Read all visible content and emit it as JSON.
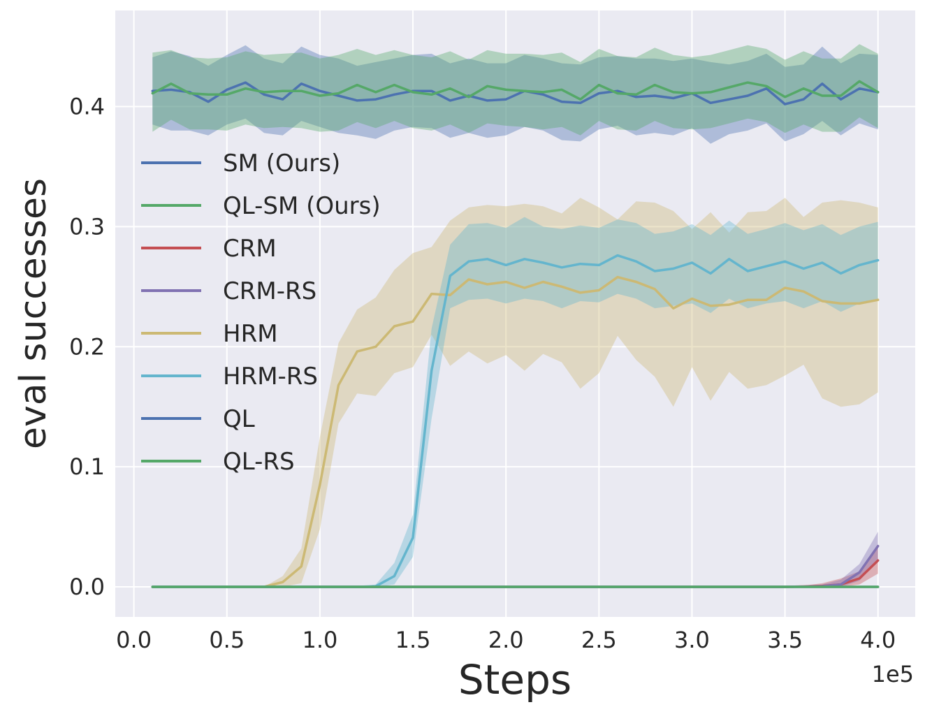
{
  "chart_data": {
    "type": "line",
    "xlabel": "Steps",
    "ylabel": "eval successes",
    "x_offset_label": "1e5",
    "xlim": [
      -0.1,
      4.2
    ],
    "ylim": [
      -0.025,
      0.48
    ],
    "xticks": [
      0.0,
      0.5,
      1.0,
      1.5,
      2.0,
      2.5,
      3.0,
      3.5,
      4.0
    ],
    "xtick_labels": [
      "0.0",
      "0.5",
      "1.0",
      "1.5",
      "2.0",
      "2.5",
      "3.0",
      "3.5",
      "4.0"
    ],
    "yticks": [
      0.0,
      0.1,
      0.2,
      0.3,
      0.4
    ],
    "ytick_labels": [
      "0.0",
      "0.1",
      "0.2",
      "0.3",
      "0.4"
    ],
    "grid": true,
    "legend_position": "upper-left",
    "background": "#EAEAF2",
    "x": [
      0.1,
      0.2,
      0.3,
      0.4,
      0.5,
      0.6,
      0.7,
      0.8,
      0.9,
      1.0,
      1.1,
      1.2,
      1.3,
      1.4,
      1.5,
      1.6,
      1.7,
      1.8,
      1.9,
      2.0,
      2.1,
      2.2,
      2.3,
      2.4,
      2.5,
      2.6,
      2.7,
      2.8,
      2.9,
      3.0,
      3.1,
      3.2,
      3.3,
      3.4,
      3.5,
      3.6,
      3.7,
      3.8,
      3.9,
      4.0
    ],
    "series": [
      {
        "name": "SM (Ours)",
        "color": "#4C72B0",
        "values": [
          0.413,
          0.414,
          0.412,
          0.404,
          0.414,
          0.42,
          0.41,
          0.406,
          0.419,
          0.413,
          0.409,
          0.405,
          0.406,
          0.41,
          0.413,
          0.413,
          0.405,
          0.409,
          0.405,
          0.406,
          0.413,
          0.41,
          0.404,
          0.403,
          0.411,
          0.413,
          0.408,
          0.409,
          0.407,
          0.411,
          0.403,
          0.406,
          0.409,
          0.415,
          0.402,
          0.406,
          0.419,
          0.406,
          0.415,
          0.412
        ],
        "lower": [
          0.385,
          0.38,
          0.38,
          0.376,
          0.385,
          0.39,
          0.378,
          0.376,
          0.388,
          0.383,
          0.378,
          0.376,
          0.373,
          0.38,
          0.383,
          0.382,
          0.374,
          0.378,
          0.374,
          0.376,
          0.383,
          0.38,
          0.372,
          0.371,
          0.381,
          0.384,
          0.376,
          0.378,
          0.376,
          0.382,
          0.369,
          0.377,
          0.38,
          0.386,
          0.371,
          0.377,
          0.388,
          0.376,
          0.386,
          0.381
        ],
        "upper": [
          0.441,
          0.446,
          0.442,
          0.434,
          0.443,
          0.451,
          0.44,
          0.436,
          0.45,
          0.443,
          0.44,
          0.434,
          0.437,
          0.44,
          0.443,
          0.444,
          0.436,
          0.44,
          0.436,
          0.436,
          0.443,
          0.44,
          0.436,
          0.435,
          0.441,
          0.442,
          0.44,
          0.44,
          0.438,
          0.44,
          0.437,
          0.435,
          0.438,
          0.444,
          0.433,
          0.435,
          0.45,
          0.436,
          0.444,
          0.443
        ]
      },
      {
        "name": "QL-SM (Ours)",
        "color": "#55A868",
        "values": [
          0.411,
          0.419,
          0.411,
          0.41,
          0.41,
          0.415,
          0.412,
          0.413,
          0.413,
          0.409,
          0.411,
          0.418,
          0.412,
          0.418,
          0.412,
          0.41,
          0.415,
          0.408,
          0.417,
          0.414,
          0.413,
          0.412,
          0.414,
          0.406,
          0.418,
          0.411,
          0.41,
          0.418,
          0.412,
          0.411,
          0.412,
          0.416,
          0.42,
          0.417,
          0.408,
          0.415,
          0.409,
          0.409,
          0.421,
          0.412
        ],
        "lower": [
          0.379,
          0.389,
          0.381,
          0.381,
          0.38,
          0.385,
          0.382,
          0.383,
          0.382,
          0.379,
          0.38,
          0.387,
          0.382,
          0.388,
          0.382,
          0.38,
          0.385,
          0.378,
          0.386,
          0.384,
          0.383,
          0.381,
          0.383,
          0.376,
          0.388,
          0.381,
          0.38,
          0.388,
          0.382,
          0.381,
          0.382,
          0.386,
          0.39,
          0.387,
          0.378,
          0.385,
          0.379,
          0.379,
          0.391,
          0.382
        ],
        "upper": [
          0.445,
          0.447,
          0.441,
          0.44,
          0.441,
          0.446,
          0.443,
          0.444,
          0.445,
          0.44,
          0.443,
          0.448,
          0.443,
          0.447,
          0.443,
          0.441,
          0.446,
          0.439,
          0.447,
          0.444,
          0.444,
          0.443,
          0.445,
          0.437,
          0.448,
          0.442,
          0.441,
          0.449,
          0.443,
          0.441,
          0.443,
          0.447,
          0.451,
          0.448,
          0.439,
          0.446,
          0.44,
          0.44,
          0.452,
          0.444
        ]
      },
      {
        "name": "CRM",
        "color": "#C44E52",
        "values": [
          0,
          0,
          0,
          0,
          0,
          0,
          0,
          0,
          0,
          0,
          0,
          0,
          0,
          0,
          0,
          0,
          0,
          0,
          0,
          0,
          0,
          0,
          0,
          0,
          0,
          0,
          0,
          0,
          0,
          0,
          0,
          0,
          0,
          0,
          0,
          0.0003,
          0.0008,
          0.002,
          0.007,
          0.022
        ],
        "lower": [
          0,
          0,
          0,
          0,
          0,
          0,
          0,
          0,
          0,
          0,
          0,
          0,
          0,
          0,
          0,
          0,
          0,
          0,
          0,
          0,
          0,
          0,
          0,
          0,
          0,
          0,
          0,
          0,
          0,
          0,
          0,
          0,
          0,
          0,
          0,
          0,
          0,
          0,
          0.002,
          0.011
        ],
        "upper": [
          0,
          0,
          0,
          0,
          0,
          0,
          0,
          0,
          0,
          0,
          0,
          0,
          0,
          0,
          0,
          0,
          0,
          0,
          0,
          0,
          0,
          0,
          0,
          0,
          0,
          0,
          0,
          0,
          0,
          0,
          0,
          0,
          0,
          0,
          0,
          0.001,
          0.003,
          0.007,
          0.013,
          0.033
        ]
      },
      {
        "name": "CRM-RS",
        "color": "#8172B2",
        "values": [
          0,
          0,
          0,
          0,
          0,
          0,
          0,
          0,
          0,
          0,
          0,
          0,
          0,
          0,
          0,
          0,
          0,
          0,
          0,
          0,
          0,
          0,
          0,
          0,
          0,
          0,
          0,
          0,
          0,
          0,
          0,
          0,
          0,
          0,
          0,
          0.0002,
          0.0005,
          0.002,
          0.012,
          0.034
        ],
        "lower": [
          0,
          0,
          0,
          0,
          0,
          0,
          0,
          0,
          0,
          0,
          0,
          0,
          0,
          0,
          0,
          0,
          0,
          0,
          0,
          0,
          0,
          0,
          0,
          0,
          0,
          0,
          0,
          0,
          0,
          0,
          0,
          0,
          0,
          0,
          0,
          0,
          0,
          0,
          0.005,
          0.022
        ],
        "upper": [
          0,
          0,
          0,
          0,
          0,
          0,
          0,
          0,
          0,
          0,
          0,
          0,
          0,
          0,
          0,
          0,
          0,
          0,
          0,
          0,
          0,
          0,
          0,
          0,
          0,
          0,
          0,
          0,
          0,
          0,
          0,
          0,
          0,
          0,
          0,
          0.001,
          0.002,
          0.006,
          0.019,
          0.046
        ]
      },
      {
        "name": "HRM",
        "color": "#CCB974",
        "values": [
          0,
          0,
          0,
          0,
          0,
          0,
          0,
          0.004,
          0.017,
          0.085,
          0.168,
          0.196,
          0.2,
          0.217,
          0.221,
          0.244,
          0.243,
          0.256,
          0.252,
          0.254,
          0.249,
          0.254,
          0.25,
          0.245,
          0.247,
          0.258,
          0.254,
          0.248,
          0.232,
          0.24,
          0.234,
          0.235,
          0.239,
          0.239,
          0.249,
          0.246,
          0.238,
          0.236,
          0.236,
          0.239
        ],
        "lower": [
          0,
          0,
          0,
          0,
          0,
          0,
          0,
          0,
          0.003,
          0.048,
          0.136,
          0.161,
          0.159,
          0.178,
          0.183,
          0.21,
          0.184,
          0.196,
          0.186,
          0.193,
          0.18,
          0.194,
          0.187,
          0.165,
          0.178,
          0.209,
          0.189,
          0.175,
          0.15,
          0.183,
          0.155,
          0.179,
          0.165,
          0.168,
          0.176,
          0.185,
          0.157,
          0.15,
          0.152,
          0.162
        ],
        "upper": [
          0,
          0,
          0,
          0,
          0,
          0,
          0,
          0.009,
          0.032,
          0.125,
          0.203,
          0.231,
          0.241,
          0.264,
          0.278,
          0.283,
          0.305,
          0.316,
          0.318,
          0.317,
          0.319,
          0.317,
          0.311,
          0.324,
          0.316,
          0.306,
          0.321,
          0.32,
          0.313,
          0.298,
          0.312,
          0.295,
          0.312,
          0.313,
          0.324,
          0.308,
          0.32,
          0.322,
          0.32,
          0.316
        ]
      },
      {
        "name": "HRM-RS",
        "color": "#64B5CD",
        "values": [
          0,
          0,
          0,
          0,
          0,
          0,
          0,
          0,
          0,
          0,
          0,
          0,
          0.0005,
          0.009,
          0.041,
          0.18,
          0.259,
          0.271,
          0.273,
          0.268,
          0.273,
          0.27,
          0.266,
          0.269,
          0.268,
          0.276,
          0.271,
          0.263,
          0.265,
          0.27,
          0.261,
          0.273,
          0.263,
          0.267,
          0.271,
          0.265,
          0.27,
          0.261,
          0.268,
          0.272
        ],
        "lower": [
          0,
          0,
          0,
          0,
          0,
          0,
          0,
          0,
          0,
          0,
          0,
          0,
          0,
          0.002,
          0.025,
          0.14,
          0.232,
          0.239,
          0.24,
          0.236,
          0.24,
          0.238,
          0.232,
          0.238,
          0.237,
          0.244,
          0.24,
          0.232,
          0.234,
          0.236,
          0.228,
          0.24,
          0.232,
          0.236,
          0.238,
          0.232,
          0.238,
          0.229,
          0.236,
          0.24
        ],
        "upper": [
          0,
          0,
          0,
          0,
          0,
          0,
          0,
          0,
          0,
          0,
          0,
          0,
          0.002,
          0.02,
          0.06,
          0.215,
          0.285,
          0.302,
          0.303,
          0.299,
          0.308,
          0.3,
          0.298,
          0.301,
          0.299,
          0.306,
          0.303,
          0.294,
          0.296,
          0.302,
          0.293,
          0.305,
          0.294,
          0.298,
          0.303,
          0.297,
          0.302,
          0.293,
          0.3,
          0.304
        ]
      },
      {
        "name": "QL",
        "color": "#4C72B0",
        "values": [
          0,
          0,
          0,
          0,
          0,
          0,
          0,
          0,
          0,
          0,
          0,
          0,
          0,
          0,
          0,
          0,
          0,
          0,
          0,
          0,
          0,
          0,
          0,
          0,
          0,
          0,
          0,
          0,
          0,
          0,
          0,
          0,
          0,
          0,
          0,
          0,
          0,
          0,
          0,
          0
        ]
      },
      {
        "name": "QL-RS",
        "color": "#55A868",
        "values": [
          0,
          0,
          0,
          0,
          0,
          0,
          0,
          0,
          0,
          0,
          0,
          0,
          0,
          0,
          0,
          0,
          0,
          0,
          0,
          0,
          0,
          0,
          0,
          0,
          0,
          0,
          0,
          0,
          0,
          0,
          0,
          0,
          0,
          0,
          0,
          0,
          0,
          0,
          0,
          0
        ]
      }
    ]
  }
}
